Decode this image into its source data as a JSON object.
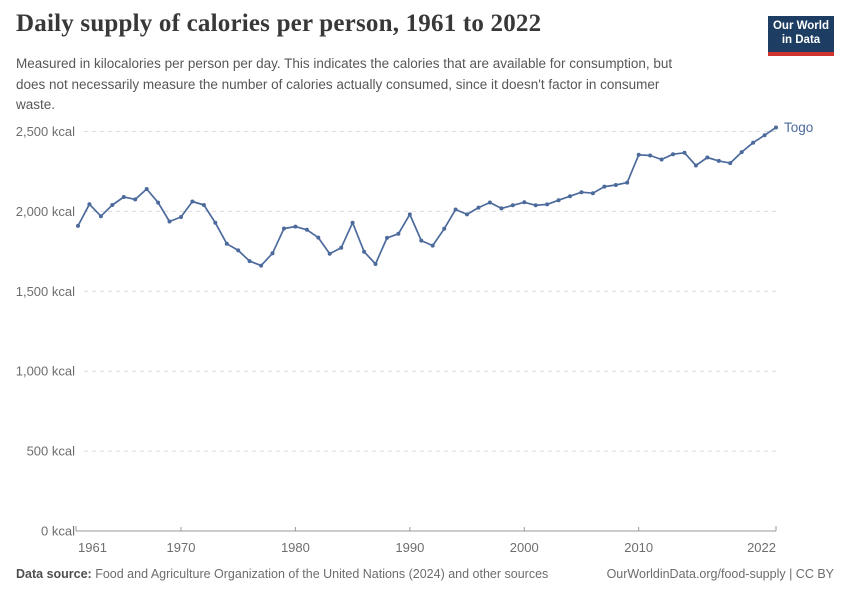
{
  "header": {
    "title": "Daily supply of calories per person, 1961 to 2022",
    "subtitle_lines": [
      "Measured in kilocalories per person per day. This indicates the calories that are available for consumption, but",
      "does not necessarily measure the number of calories actually consumed, since it doesn't factor in consumer",
      "waste."
    ],
    "logo": {
      "line1": "Our World",
      "line2": "in Data",
      "bg_color": "#1d3d63",
      "accent_color": "#d1332e"
    }
  },
  "chart_data": {
    "type": "line",
    "title": "Daily supply of calories per person, 1961 to 2022",
    "xlabel": "",
    "ylabel": "",
    "xlim": [
      1961,
      2022
    ],
    "ylim": [
      0,
      2500
    ],
    "grid": "horizontal-dashed",
    "legend_position": "end-of-line-label",
    "x_ticks": [
      1961,
      1970,
      1980,
      1990,
      2000,
      2010,
      2022
    ],
    "x_tick_labels": [
      "1961",
      "1970",
      "1980",
      "1990",
      "2000",
      "2010",
      "2022"
    ],
    "y_ticks": [
      0,
      500,
      1000,
      1500,
      2000,
      2500
    ],
    "y_tick_labels": [
      "0 kcal",
      "500 kcal",
      "1,000 kcal",
      "1,500 kcal",
      "2,000 kcal",
      "2,500 kcal"
    ],
    "series": [
      {
        "name": "Togo",
        "color": "#4C6A9C",
        "years": [
          1961,
          1962,
          1963,
          1964,
          1965,
          1966,
          1967,
          1968,
          1969,
          1970,
          1971,
          1972,
          1973,
          1974,
          1975,
          1976,
          1977,
          1978,
          1979,
          1980,
          1981,
          1982,
          1983,
          1984,
          1985,
          1986,
          1987,
          1988,
          1989,
          1990,
          1991,
          1992,
          1993,
          1994,
          1995,
          1996,
          1997,
          1998,
          1999,
          2000,
          2001,
          2002,
          2003,
          2004,
          2005,
          2006,
          2007,
          2008,
          2009,
          2010,
          2011,
          2012,
          2013,
          2014,
          2015,
          2016,
          2017,
          2018,
          2019,
          2020,
          2021,
          2022
        ],
        "values": [
          1909,
          2045,
          1970,
          2040,
          2090,
          2075,
          2140,
          2055,
          1937,
          1965,
          2062,
          2040,
          1929,
          1797,
          1756,
          1689,
          1661,
          1738,
          1893,
          1905,
          1885,
          1836,
          1735,
          1772,
          1929,
          1748,
          1671,
          1834,
          1860,
          1981,
          1817,
          1786,
          1891,
          2012,
          1981,
          2024,
          2056,
          2019,
          2038,
          2057,
          2038,
          2044,
          2070,
          2095,
          2120,
          2114,
          2155,
          2165,
          2180,
          2354,
          2350,
          2325,
          2358,
          2367,
          2287,
          2337,
          2316,
          2302,
          2371,
          2430,
          2477,
          2525
        ]
      }
    ],
    "unit": "kcal"
  },
  "footer": {
    "datasource_label": "Data source:",
    "datasource_text": "Food and Agriculture Organization of the United Nations (2024) and other sources",
    "link_text": "OurWorldinData.org/food-supply | CC BY"
  }
}
